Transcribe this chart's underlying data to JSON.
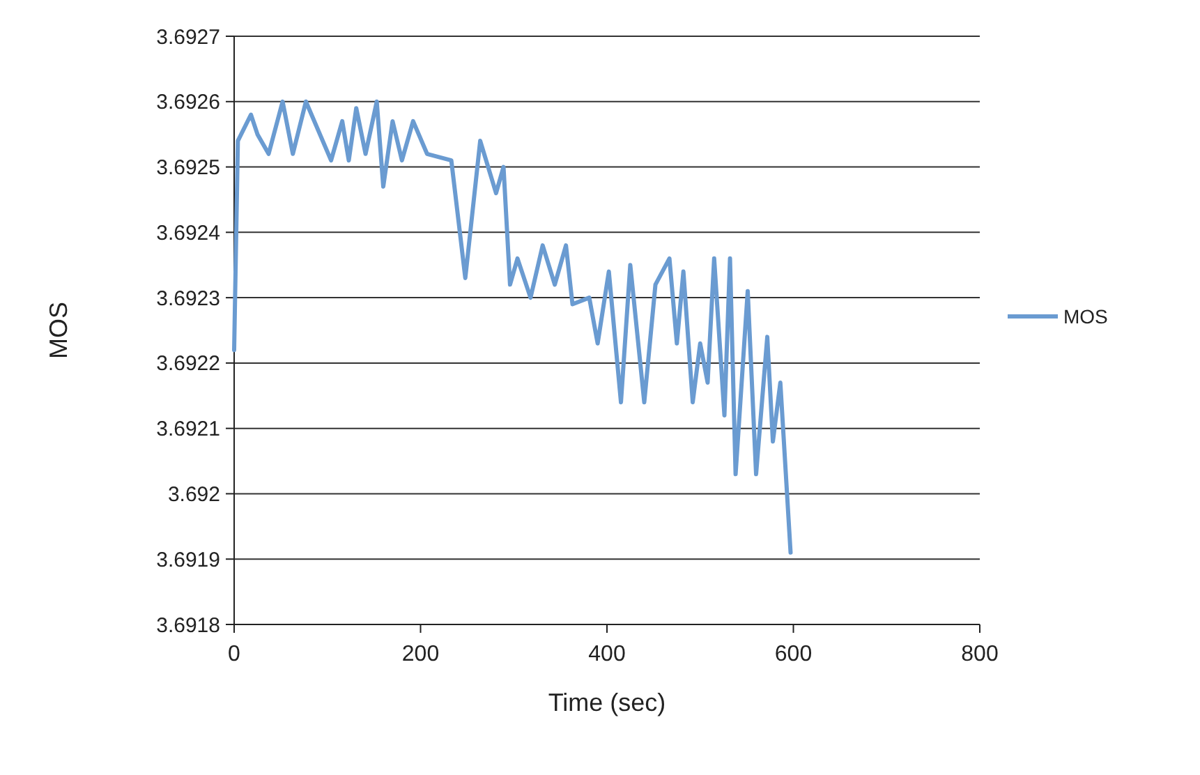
{
  "chart_data": {
    "type": "line",
    "xlabel": "Time (sec)",
    "ylabel": "MOS",
    "xlim": [
      0,
      800
    ],
    "xticks": [
      0,
      200,
      400,
      600,
      800
    ],
    "ylim": [
      3.6918,
      3.6927
    ],
    "yticks": [
      3.6918,
      3.6919,
      3.692,
      3.6921,
      3.6922,
      3.6923,
      3.6924,
      3.6925,
      3.6926,
      3.6927
    ],
    "grid": "y",
    "legend": "right",
    "marker": "none",
    "line_style": "solid",
    "series": [
      {
        "name": "MOS",
        "color": "#6a9bd1",
        "x": [
          0,
          4,
          18,
          25,
          37,
          52,
          63,
          77,
          104,
          116,
          123,
          131,
          141,
          153,
          160,
          170,
          180,
          192,
          207,
          233,
          248,
          264,
          281,
          289,
          296,
          304,
          318,
          331,
          344,
          356,
          363,
          381,
          390,
          402,
          415,
          425,
          440,
          452,
          467,
          475,
          482,
          492,
          500,
          508,
          515,
          526,
          532,
          538,
          551,
          560,
          572,
          578,
          586,
          597
        ],
        "values": [
          3.69222,
          3.69254,
          3.69258,
          3.69255,
          3.69252,
          3.6926,
          3.69252,
          3.6926,
          3.69251,
          3.69257,
          3.69251,
          3.69259,
          3.69252,
          3.6926,
          3.69247,
          3.69257,
          3.69251,
          3.69257,
          3.69252,
          3.69251,
          3.69233,
          3.69254,
          3.69246,
          3.6925,
          3.69232,
          3.69236,
          3.6923,
          3.69238,
          3.69232,
          3.69238,
          3.69229,
          3.6923,
          3.69223,
          3.69234,
          3.69214,
          3.69235,
          3.69214,
          3.69232,
          3.69236,
          3.69223,
          3.69234,
          3.69214,
          3.69223,
          3.69217,
          3.69236,
          3.69212,
          3.69236,
          3.69203,
          3.69231,
          3.69203,
          3.69224,
          3.69208,
          3.69217,
          3.69191
        ]
      }
    ]
  }
}
